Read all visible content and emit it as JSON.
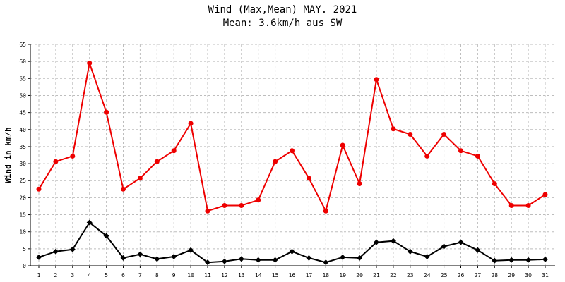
{
  "chart_data": {
    "type": "line",
    "title": "Wind (Max,Mean) MAY. 2021",
    "subtitle": "Mean: 3.6km/h aus SW",
    "xlabel": "",
    "ylabel": "Wind in km/h",
    "categories": [
      "1",
      "2",
      "3",
      "4",
      "5",
      "6",
      "7",
      "8",
      "9",
      "10",
      "11",
      "12",
      "13",
      "14",
      "15",
      "16",
      "17",
      "18",
      "19",
      "20",
      "21",
      "22",
      "23",
      "24",
      "25",
      "26",
      "27",
      "28",
      "29",
      "30",
      "31"
    ],
    "ylim": [
      0,
      65
    ],
    "yticks": [
      "0",
      "5",
      "10",
      "15",
      "20",
      "25",
      "30",
      "35",
      "40",
      "45",
      "50",
      "55",
      "60",
      "65"
    ],
    "grid": true,
    "series": [
      {
        "color": "#ee0000",
        "marker": "circle",
        "values": [
          22.5,
          30.6,
          32.2,
          59.5,
          45.1,
          22.5,
          25.7,
          30.6,
          33.8,
          41.8,
          16.1,
          17.7,
          17.7,
          19.3,
          30.6,
          33.8,
          25.7,
          16.1,
          35.4,
          24.1,
          54.7,
          40.2,
          38.6,
          32.2,
          38.6,
          33.8,
          32.2,
          24.1,
          17.7,
          17.7,
          20.9
        ]
      },
      {
        "color": "#000000",
        "marker": "diamond",
        "values": [
          2.5,
          4.2,
          4.8,
          12.7,
          8.8,
          2.3,
          3.4,
          2.0,
          2.7,
          4.6,
          1.0,
          1.3,
          2.0,
          1.7,
          1.7,
          4.2,
          2.3,
          1.0,
          2.5,
          2.3,
          6.9,
          7.3,
          4.2,
          2.7,
          5.7,
          6.9,
          4.6,
          1.5,
          1.7,
          1.7,
          1.9
        ]
      }
    ]
  }
}
